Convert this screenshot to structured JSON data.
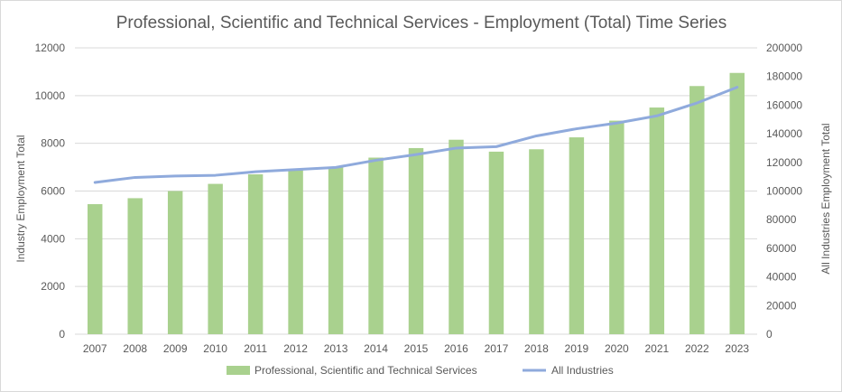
{
  "chart_data": {
    "type": "bar",
    "title": "Professional, Scientific and Technical Services - Employment (Total) Time Series",
    "ylabel_left": "Industry Employment Total",
    "ylabel_right": "All Industries Employment Total",
    "categories": [
      "2007",
      "2008",
      "2009",
      "2010",
      "2011",
      "2012",
      "2013",
      "2014",
      "2015",
      "2016",
      "2017",
      "2018",
      "2019",
      "2020",
      "2021",
      "2022",
      "2023"
    ],
    "ylim_left": [
      0,
      12000
    ],
    "ylim_right": [
      0,
      200000
    ],
    "yticks_left": [
      "0",
      "2000",
      "4000",
      "6000",
      "8000",
      "10000",
      "12000"
    ],
    "yticks_right": [
      "0",
      "20000",
      "40000",
      "60000",
      "80000",
      "100000",
      "120000",
      "140000",
      "160000",
      "180000",
      "200000"
    ],
    "grid": true,
    "legend_position": "bottom",
    "series": [
      {
        "name": "Professional, Scientific and Technical Services",
        "type": "bar",
        "axis": "left",
        "color": "#a9d18e",
        "values": [
          5450,
          5700,
          6000,
          6300,
          6700,
          6900,
          7000,
          7400,
          7800,
          8150,
          7650,
          7750,
          8250,
          8950,
          9500,
          10400,
          10950
        ]
      },
      {
        "name": "All Industries",
        "type": "line",
        "axis": "right",
        "color": "#8faadc",
        "values": [
          106000,
          109500,
          110500,
          111000,
          113500,
          115000,
          116500,
          121500,
          125500,
          130000,
          131000,
          138500,
          143500,
          147500,
          152500,
          161500,
          172500
        ]
      }
    ]
  }
}
